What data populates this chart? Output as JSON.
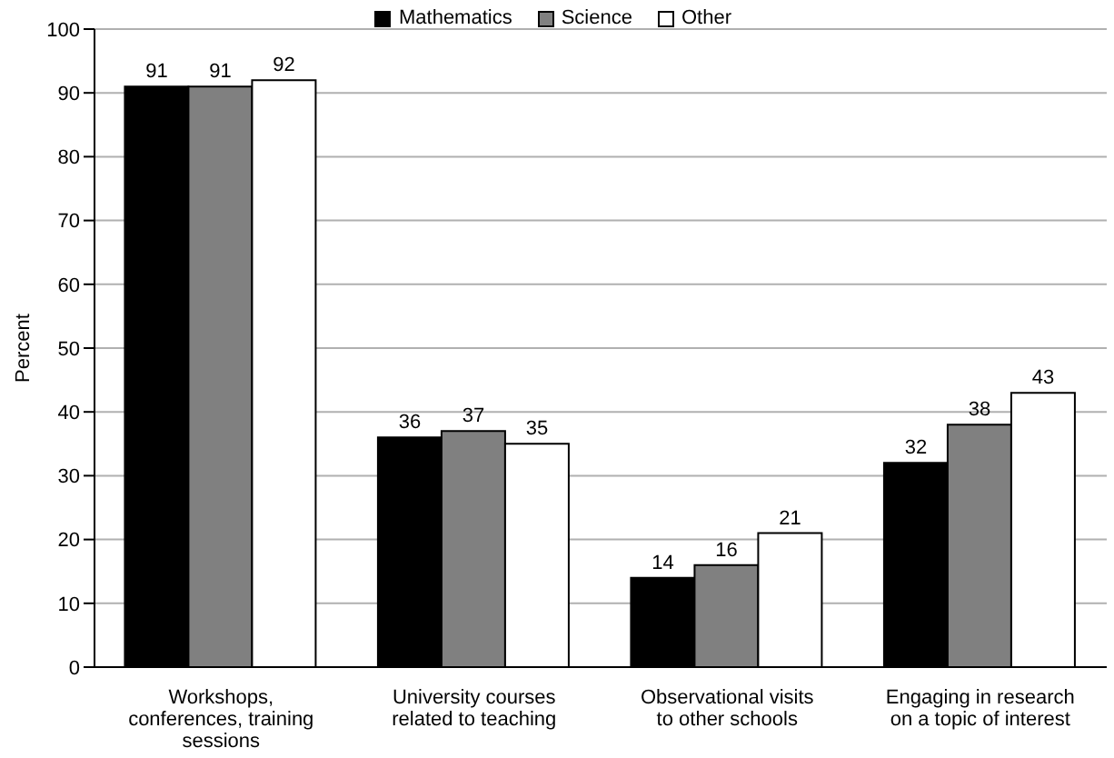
{
  "chart_data": {
    "type": "bar",
    "ylabel": "Percent",
    "categories": [
      "Workshops, conferences, training sessions",
      "University courses related to teaching",
      "Observational visits to other schools",
      "Engaging in research on a topic of interest"
    ],
    "series": [
      {
        "name": "Mathematics",
        "color": "#000000",
        "values": [
          91,
          36,
          14,
          32
        ]
      },
      {
        "name": "Science",
        "color": "#808080",
        "values": [
          91,
          37,
          16,
          38
        ]
      },
      {
        "name": "Other",
        "color": "#ffffff",
        "values": [
          92,
          35,
          21,
          43
        ]
      }
    ],
    "ylim": [
      0,
      100
    ],
    "yticks": [
      0,
      10,
      20,
      30,
      40,
      50,
      60,
      70,
      80,
      90,
      100
    ],
    "grid": "y",
    "legend": "top",
    "data_labels": true
  }
}
